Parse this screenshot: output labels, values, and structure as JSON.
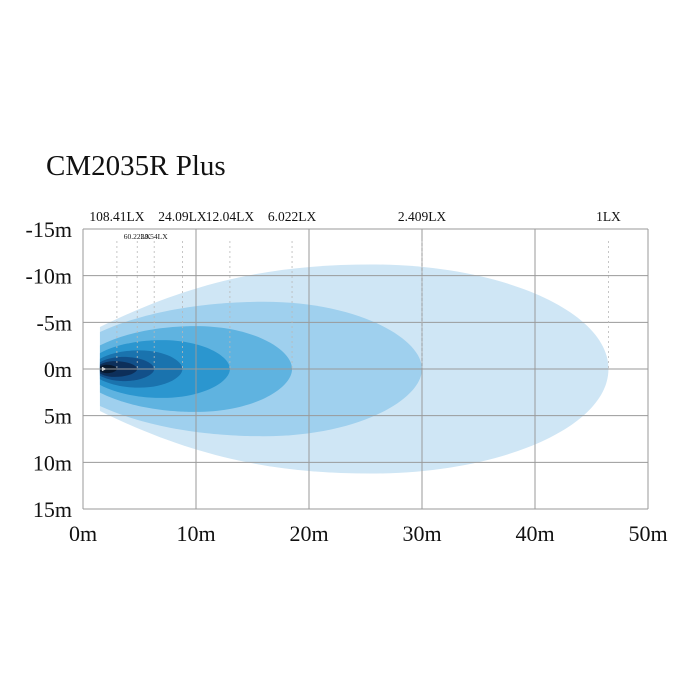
{
  "chart_data": {
    "type": "area",
    "title": "CM2035R Plus",
    "xlabel": "",
    "ylabel": "",
    "xlim": [
      0,
      50
    ],
    "ylim": [
      -15,
      15
    ],
    "x_ticks": [
      0,
      10,
      20,
      30,
      40,
      50
    ],
    "x_tick_labels": [
      "0m",
      "10m",
      "20m",
      "30m",
      "40m",
      "50m"
    ],
    "y_ticks": [
      -15,
      -10,
      -5,
      0,
      5,
      10,
      15
    ],
    "y_tick_labels": [
      "-15m",
      "-10m",
      "-5m",
      "0m",
      "5m",
      "10m",
      "15m"
    ],
    "grid": true,
    "beam_start_x": 1.5,
    "beam_start_half_width": 4.5,
    "series": [
      {
        "name": "1LX",
        "lux_label": "1LX",
        "reach": 46.5,
        "max_x": 25.5,
        "half_width": 11.2,
        "color": "#cfe6f5"
      },
      {
        "name": "2.409LX",
        "lux_label": "2.409LX",
        "reach": 30,
        "max_x": 16,
        "half_width": 7.2,
        "color": "#9fd0ee"
      },
      {
        "name": "6.022LX",
        "lux_label": "6.022LX",
        "reach": 18.5,
        "max_x": 10,
        "half_width": 4.6,
        "color": "#5fb3e0"
      },
      {
        "name": "12.04LX",
        "lux_label": "12.04LX",
        "reach": 13,
        "max_x": 7,
        "half_width": 3.1,
        "color": "#2b96cf"
      },
      {
        "name": "24.09LX",
        "lux_label": "24.09LX",
        "reach": 8.8,
        "max_x": 5,
        "half_width": 2.0,
        "color": "#1a73ae"
      },
      {
        "name": "38.54LX",
        "lux_label": "38.54LX",
        "reach": 6.3,
        "max_x": 3.6,
        "half_width": 1.3,
        "color": "#12508a"
      },
      {
        "name": "60.22LX",
        "lux_label": "60.22LX",
        "reach": 4.8,
        "max_x": 2.8,
        "half_width": 0.85,
        "color": "#0d2f5a"
      },
      {
        "name": "108.41LX",
        "lux_label": "108.41LX",
        "reach": 3.0,
        "max_x": 2.1,
        "half_width": 0.45,
        "color": "#07182e"
      }
    ],
    "lux_labels_top": [
      {
        "text": "108.41LX",
        "x": 3.0
      },
      {
        "text": "24.09LX",
        "x": 8.8
      },
      {
        "text": "12.04LX",
        "x": 13
      },
      {
        "text": "6.022LX",
        "x": 18.5
      },
      {
        "text": "2.409LX",
        "x": 30
      },
      {
        "text": "1LX",
        "x": 46.5
      }
    ],
    "lux_labels_small": [
      {
        "text": "60.22LX",
        "x": 4.8
      },
      {
        "text": "38.54LX",
        "x": 6.3
      }
    ]
  }
}
